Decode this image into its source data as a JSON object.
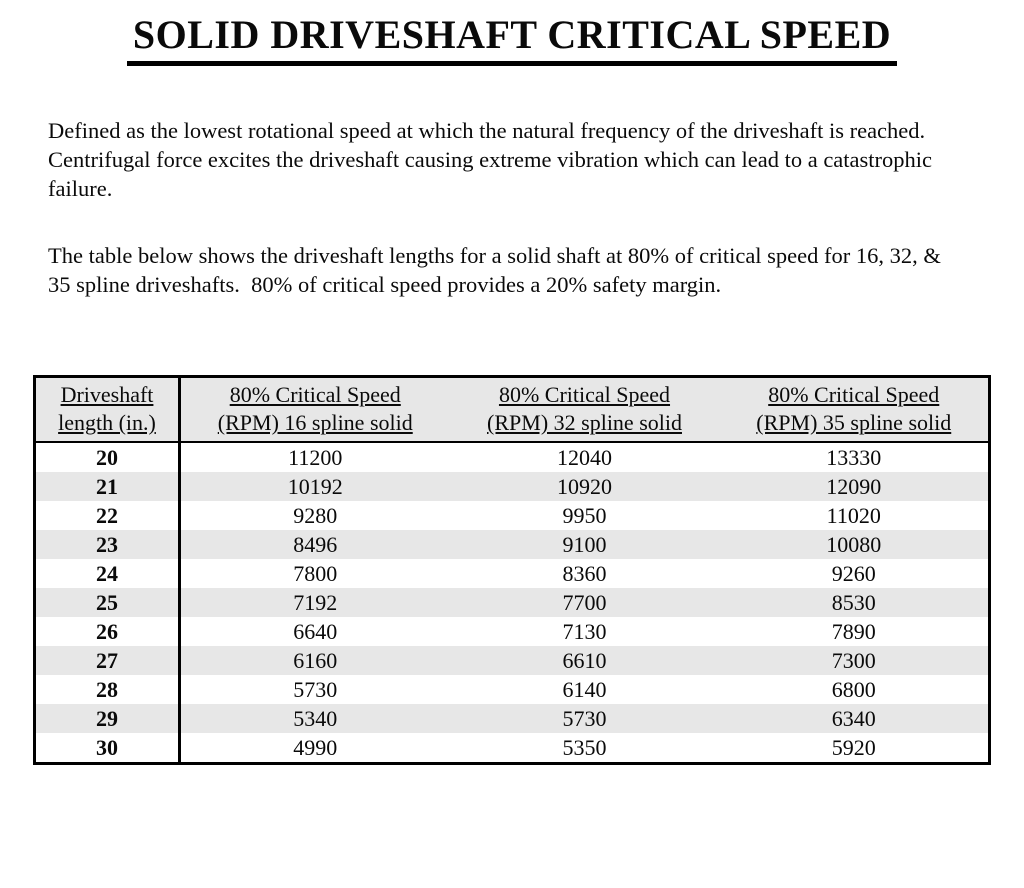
{
  "page": {
    "title": "SOLID DRIVESHAFT CRITICAL SPEED",
    "paragraphs": [
      "Defined as the lowest rotational speed at which the natural frequency of the driveshaft is reached.  Centrifugal force excites the driveshaft causing extreme vibration which can lead to a catastrophic failure.",
      "The table below shows the driveshaft lengths for a solid shaft at 80% of critical speed for 16, 32, & 35 spline driveshafts.  80% of critical speed provides a 20% safety margin."
    ]
  },
  "table": {
    "headers": [
      {
        "line1": "Driveshaft",
        "line2": "length (in.)"
      },
      {
        "line1": "80% Critical Speed",
        "line2": "(RPM) 16 spline solid"
      },
      {
        "line1": "80% Critical Speed",
        "line2": "(RPM) 32 spline solid"
      },
      {
        "line1": "80% Critical Speed",
        "line2": "(RPM) 35 spline solid"
      }
    ],
    "rows": [
      [
        "20",
        "11200",
        "12040",
        "13330"
      ],
      [
        "21",
        "10192",
        "10920",
        "12090"
      ],
      [
        "22",
        "9280",
        "9950",
        "11020"
      ],
      [
        "23",
        "8496",
        "9100",
        "10080"
      ],
      [
        "24",
        "7800",
        "8360",
        "9260"
      ],
      [
        "25",
        "7192",
        "7700",
        "8530"
      ],
      [
        "26",
        "6640",
        "7130",
        "7890"
      ],
      [
        "27",
        "6160",
        "6610",
        "7300"
      ],
      [
        "28",
        "5730",
        "6140",
        "6800"
      ],
      [
        "29",
        "5340",
        "5730",
        "6340"
      ],
      [
        "30",
        "4990",
        "5350",
        "5920"
      ]
    ]
  },
  "colors": {
    "row_stripe": "#e7e7e7",
    "header_background": "#e7e7e7",
    "border": "#000000",
    "text": "#0a0a0a"
  }
}
